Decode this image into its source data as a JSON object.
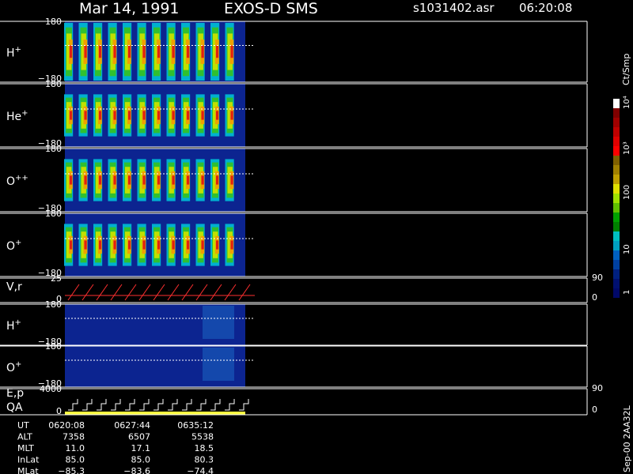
{
  "header": {
    "date": "Mar 14, 1991",
    "mission": "EXOS-D SMS",
    "file": "s1031402.asr",
    "time": "06:20:08"
  },
  "panels": [
    {
      "label": "H",
      "sup": "+",
      "top": "180",
      "bottom": "−180"
    },
    {
      "label": "He",
      "sup": "+",
      "top": "180",
      "bottom": "−180"
    },
    {
      "label": "O",
      "sup": "++",
      "top": "180",
      "bottom": "−180"
    },
    {
      "label": "O",
      "sup": "+",
      "top": "180",
      "bottom": "−180"
    },
    {
      "label": "V,r",
      "top": "25",
      "bottom": "0",
      "right_top": "90",
      "right_bottom": "0"
    },
    {
      "label": "H",
      "sup": "+",
      "top": "180",
      "bottom": "−180"
    },
    {
      "label": "O",
      "sup": "+",
      "top": "180",
      "bottom": "−180"
    },
    {
      "label": "E,p",
      "label2": "QA",
      "top": "4000",
      "bottom": "0",
      "right_top": "90",
      "right_bottom": "0"
    }
  ],
  "colorbar": {
    "title": "Ct/Smp",
    "labels": [
      "1",
      "10",
      "100",
      "10³",
      "10⁴"
    ]
  },
  "footer": {
    "rows": [
      [
        "UT",
        "0620:08",
        "0627:44",
        "0635:12"
      ],
      [
        "ALT",
        "7358",
        "6507",
        "5538"
      ],
      [
        "MLT",
        "11.0",
        "17.1",
        "18.5"
      ],
      [
        "InLat",
        "85.0",
        "85.0",
        "80.3"
      ],
      [
        "MLat",
        "−85.3",
        "−83.6",
        "−74.4"
      ]
    ],
    "stamp": "Sep-00 2AA32L"
  }
}
